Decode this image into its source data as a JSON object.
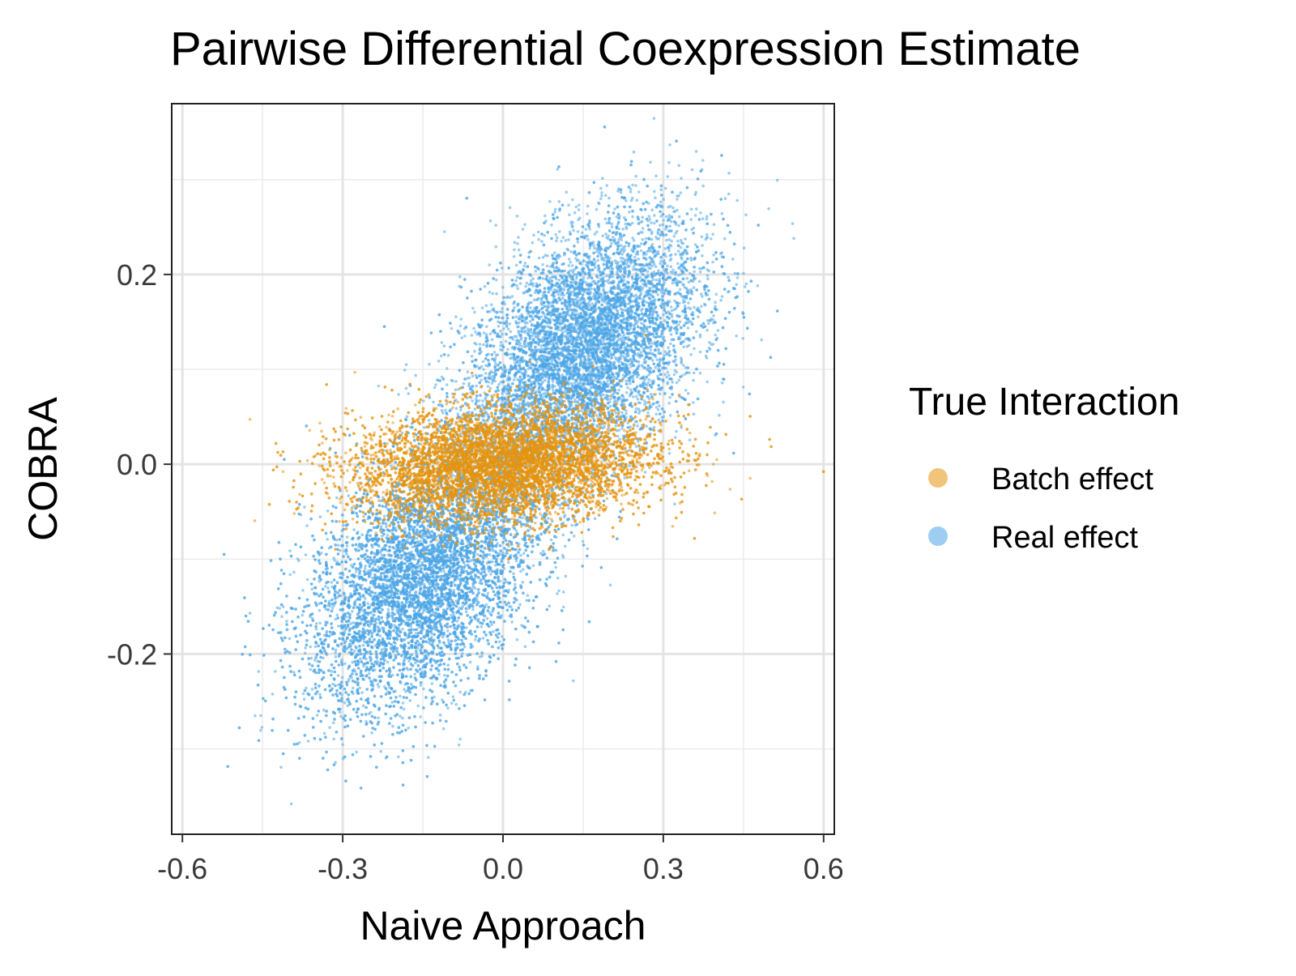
{
  "chart_data": {
    "type": "scatter",
    "title": "Pairwise Differential Coexpression Estimate",
    "xlabel": "Naive Approach",
    "ylabel": "COBRA",
    "xlim": [
      -0.62,
      0.62
    ],
    "ylim": [
      -0.39,
      0.38
    ],
    "x_ticks": [
      -0.6,
      -0.3,
      0.0,
      0.3,
      0.6
    ],
    "x_tick_labels": [
      "-0.6",
      "-0.3",
      "0.0",
      "0.3",
      "0.6"
    ],
    "y_ticks": [
      -0.2,
      0.0,
      0.2
    ],
    "y_tick_labels": [
      "-0.2",
      "0.0",
      "0.2"
    ],
    "grid": true,
    "legend": {
      "title": "True Interaction",
      "placement": "right",
      "entries": [
        "Batch effect",
        "Real effect"
      ]
    },
    "series": [
      {
        "name": "Real effect",
        "color": "#4da6e6",
        "clusters": [
          {
            "center": [
              0.15,
              0.12
            ],
            "x_sd": 0.11,
            "y_sd": 0.07,
            "correlation": 0.45,
            "points": 9000
          },
          {
            "center": [
              -0.15,
              -0.12
            ],
            "x_sd": 0.11,
            "y_sd": 0.07,
            "correlation": 0.45,
            "points": 9000
          }
        ]
      },
      {
        "name": "Batch effect",
        "color": "#e6930f",
        "clusters": [
          {
            "center": [
              0.0,
              0.0
            ],
            "x_sd": 0.14,
            "y_sd": 0.03,
            "correlation": 0.15,
            "points": 9000
          }
        ]
      }
    ]
  }
}
